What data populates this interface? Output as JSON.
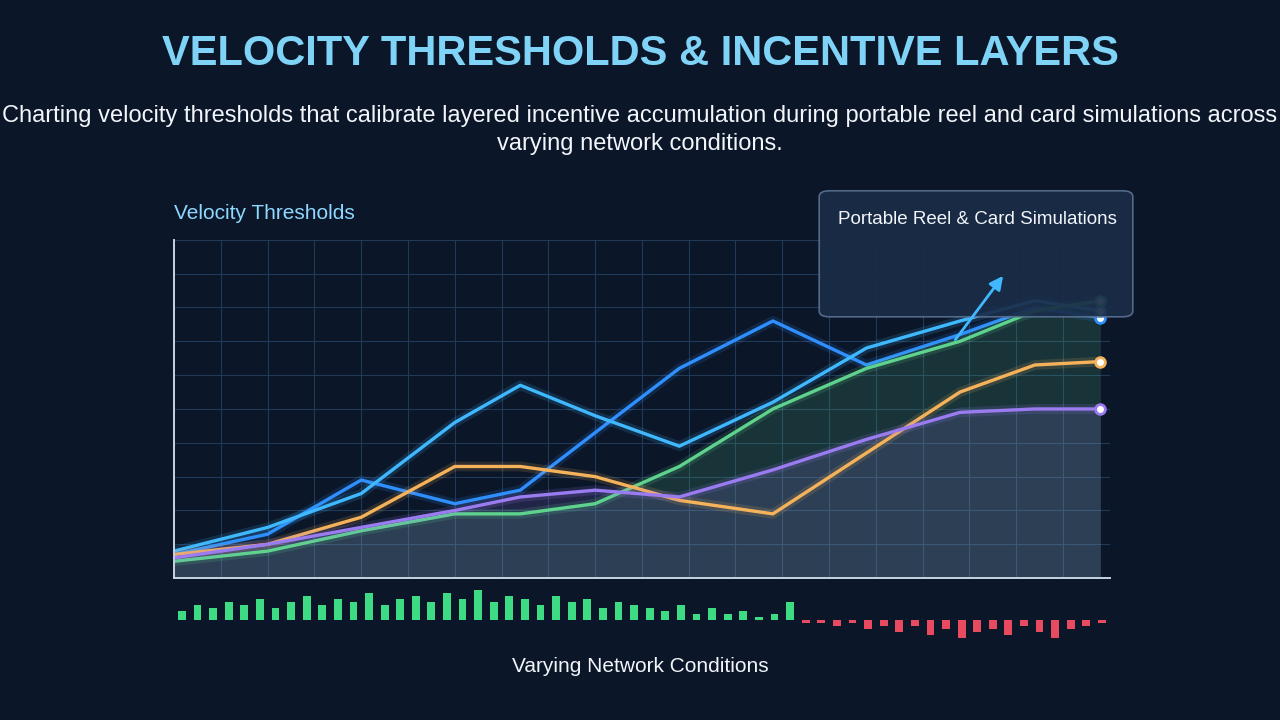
{
  "chart_data": {
    "type": "line",
    "title": "VELOCITY THRESHOLDS & INCENTIVE LAYERS",
    "subtitle": "Charting velocity thresholds that calibrate layered incentive accumulation during portable reel and card simulations across varying network conditions.",
    "y_label": "Velocity Thresholds",
    "x_label": "Varying Network Conditions",
    "annotation": "Portable Reel & Card Simulations",
    "x": [
      0,
      1,
      2,
      3,
      3.7,
      4.5,
      5.4,
      6.4,
      7.4,
      8.4,
      9.2,
      9.9
    ],
    "series": [
      {
        "type": "line",
        "color": "#2f8fff",
        "values": [
          0.7,
          1.3,
          2.9,
          2.2,
          2.6,
          4.3,
          6.2,
          7.6,
          6.3,
          7.2,
          8.0,
          7.7
        ]
      },
      {
        "type": "line",
        "color": "#3fb8ff",
        "values": [
          0.8,
          1.5,
          2.5,
          4.6,
          5.7,
          4.8,
          3.9,
          5.2,
          6.8,
          7.6,
          8.2,
          7.9
        ]
      },
      {
        "type": "area",
        "color": "#5fd38d",
        "values": [
          0.5,
          0.8,
          1.4,
          1.9,
          1.9,
          2.2,
          3.3,
          5.0,
          6.2,
          7.0,
          7.9,
          8.2
        ]
      },
      {
        "type": "line",
        "color": "#f5b25a",
        "values": [
          0.7,
          1.0,
          1.8,
          3.3,
          3.3,
          3.0,
          2.3,
          1.9,
          3.7,
          5.5,
          6.3,
          6.4
        ]
      },
      {
        "type": "area",
        "color": "#9a7bf0",
        "values": [
          0.6,
          1.0,
          1.5,
          2.0,
          2.4,
          2.6,
          2.4,
          3.2,
          4.1,
          4.9,
          5.0,
          5.0
        ]
      }
    ],
    "xlim": [
      0,
      10
    ],
    "ylim": [
      0,
      10
    ],
    "xticks": [
      0,
      0.5,
      1,
      1.5,
      2,
      2.5,
      3,
      3.5,
      4,
      4.5,
      5,
      5.5,
      6,
      6.5,
      7,
      7.5,
      8,
      8.5,
      9,
      9.5,
      10
    ],
    "yticks": [
      0,
      1,
      2,
      3,
      4,
      5,
      6,
      7,
      8,
      9,
      10
    ],
    "grid": true,
    "tick_labels": false,
    "signal": {
      "values": [
        3,
        5,
        4,
        6,
        5,
        7,
        4,
        6,
        8,
        5,
        7,
        6,
        9,
        5,
        7,
        8,
        6,
        9,
        7,
        10,
        6,
        8,
        7,
        5,
        8,
        6,
        7,
        4,
        6,
        5,
        4,
        3,
        5,
        2,
        4,
        2,
        3,
        1,
        2,
        6,
        -1,
        -1,
        -2,
        -1,
        -3,
        -2,
        -4,
        -2,
        -5,
        -3,
        -6,
        -4,
        -3,
        -5,
        -2,
        -4,
        -6,
        -3,
        -2,
        -1
      ],
      "ylim": [
        -7,
        11
      ]
    }
  }
}
